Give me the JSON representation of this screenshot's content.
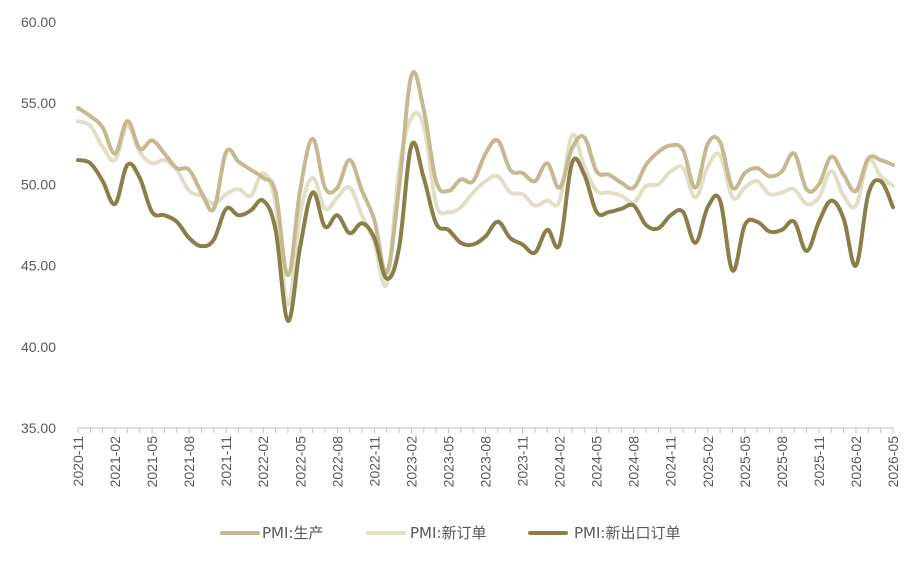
{
  "chart_data": {
    "type": "line",
    "x": [
      "2020-11",
      "2020-12",
      "2021-01",
      "2021-02",
      "2021-03",
      "2021-04",
      "2021-05",
      "2021-06",
      "2021-07",
      "2021-08",
      "2021-09",
      "2021-10",
      "2021-11",
      "2021-12",
      "2022-01",
      "2022-02",
      "2022-03",
      "2022-04",
      "2022-05",
      "2022-06",
      "2022-07",
      "2022-08",
      "2022-09",
      "2022-10",
      "2022-11",
      "2022-12",
      "2023-01",
      "2023-02",
      "2023-03",
      "2023-04",
      "2023-05",
      "2023-06",
      "2023-07",
      "2023-08",
      "2023-09",
      "2023-10",
      "2023-11",
      "2023-12",
      "2024-01",
      "2024-02",
      "2024-03",
      "2024-04",
      "2024-05",
      "2024-06",
      "2024-07",
      "2024-08",
      "2024-09",
      "2024-10",
      "2024-11",
      "2024-12",
      "2025-01",
      "2025-02",
      "2025-03",
      "2025-04",
      "2025-05",
      "2025-06",
      "2025-07",
      "2025-08",
      "2025-09",
      "2025-10",
      "2025-11",
      "2025-12",
      "2026-01",
      "2026-02",
      "2026-03",
      "2026-04",
      "2026-05"
    ],
    "x_tick_labels": [
      "2020-11",
      "2021-02",
      "2021-05",
      "2021-08",
      "2021-11",
      "2022-02",
      "2022-05",
      "2022-08",
      "2022-11",
      "2023-02",
      "2023-05",
      "2023-08",
      "2023-11",
      "2024-02",
      "2024-05",
      "2024-08",
      "2024-11",
      "2025-02",
      "2025-05",
      "2025-08",
      "2025-11",
      "2026-02",
      "2026-05"
    ],
    "y_tick_labels": [
      "60.00",
      "55.00",
      "50.00",
      "45.00",
      "40.00",
      "35.00"
    ],
    "ylim": [
      35,
      60
    ],
    "grid": false,
    "legend_position": "bottom",
    "series": [
      {
        "name": "PMI:生产",
        "color": "#c6b991",
        "values": [
          54.7,
          54.2,
          53.5,
          51.9,
          53.9,
          52.2,
          52.7,
          51.9,
          51.0,
          50.9,
          49.5,
          48.5,
          52.0,
          51.4,
          50.9,
          50.4,
          49.5,
          44.4,
          49.7,
          52.8,
          49.8,
          49.8,
          51.5,
          49.6,
          47.8,
          44.6,
          49.8,
          56.7,
          54.6,
          50.2,
          49.6,
          50.3,
          50.2,
          51.9,
          52.7,
          50.9,
          50.7,
          50.2,
          51.3,
          49.8,
          52.2,
          52.9,
          50.8,
          50.6,
          50.1,
          49.8,
          51.2,
          52.0,
          52.4,
          52.1,
          49.8,
          52.5,
          52.6,
          49.8,
          50.7,
          51.0,
          50.5,
          50.8,
          51.9,
          49.7,
          50.0,
          51.7,
          50.6,
          49.6,
          51.6,
          51.5,
          51.2
        ]
      },
      {
        "name": "PMI:新订单",
        "color": "#e3dfc6",
        "values": [
          53.9,
          53.6,
          52.3,
          51.5,
          53.6,
          52.0,
          51.3,
          51.5,
          50.9,
          49.6,
          49.3,
          48.8,
          49.4,
          49.7,
          49.3,
          50.7,
          48.8,
          42.6,
          48.2,
          50.4,
          48.5,
          49.2,
          49.8,
          48.1,
          46.4,
          43.9,
          50.9,
          54.1,
          53.6,
          48.8,
          48.3,
          48.6,
          49.5,
          50.2,
          50.5,
          49.5,
          49.4,
          48.7,
          49.0,
          49.0,
          53.0,
          51.1,
          49.6,
          49.5,
          49.3,
          48.9,
          49.9,
          50.0,
          50.8,
          51.0,
          49.2,
          51.1,
          51.8,
          49.2,
          49.8,
          50.2,
          49.4,
          49.5,
          49.7,
          48.8,
          49.2,
          50.8,
          49.3,
          48.7,
          51.5,
          50.5,
          49.9
        ]
      },
      {
        "name": "PMI:新出口订单",
        "color": "#8a7f49",
        "values": [
          51.5,
          51.3,
          50.2,
          48.8,
          51.2,
          50.4,
          48.3,
          48.1,
          47.7,
          46.7,
          46.2,
          46.6,
          48.5,
          48.1,
          48.4,
          49.0,
          47.2,
          41.6,
          46.2,
          49.5,
          47.4,
          48.1,
          47.0,
          47.6,
          46.7,
          44.2,
          46.1,
          52.4,
          50.4,
          47.6,
          47.2,
          46.4,
          46.3,
          46.8,
          47.7,
          46.7,
          46.3,
          45.8,
          47.2,
          46.3,
          51.3,
          50.6,
          48.3,
          48.3,
          48.5,
          48.7,
          47.5,
          47.3,
          48.1,
          48.3,
          46.4,
          48.6,
          49.0,
          44.7,
          47.5,
          47.7,
          47.1,
          47.2,
          47.7,
          45.9,
          47.7,
          49.0,
          47.9,
          45.0,
          49.4,
          50.2,
          48.6
        ]
      }
    ]
  }
}
